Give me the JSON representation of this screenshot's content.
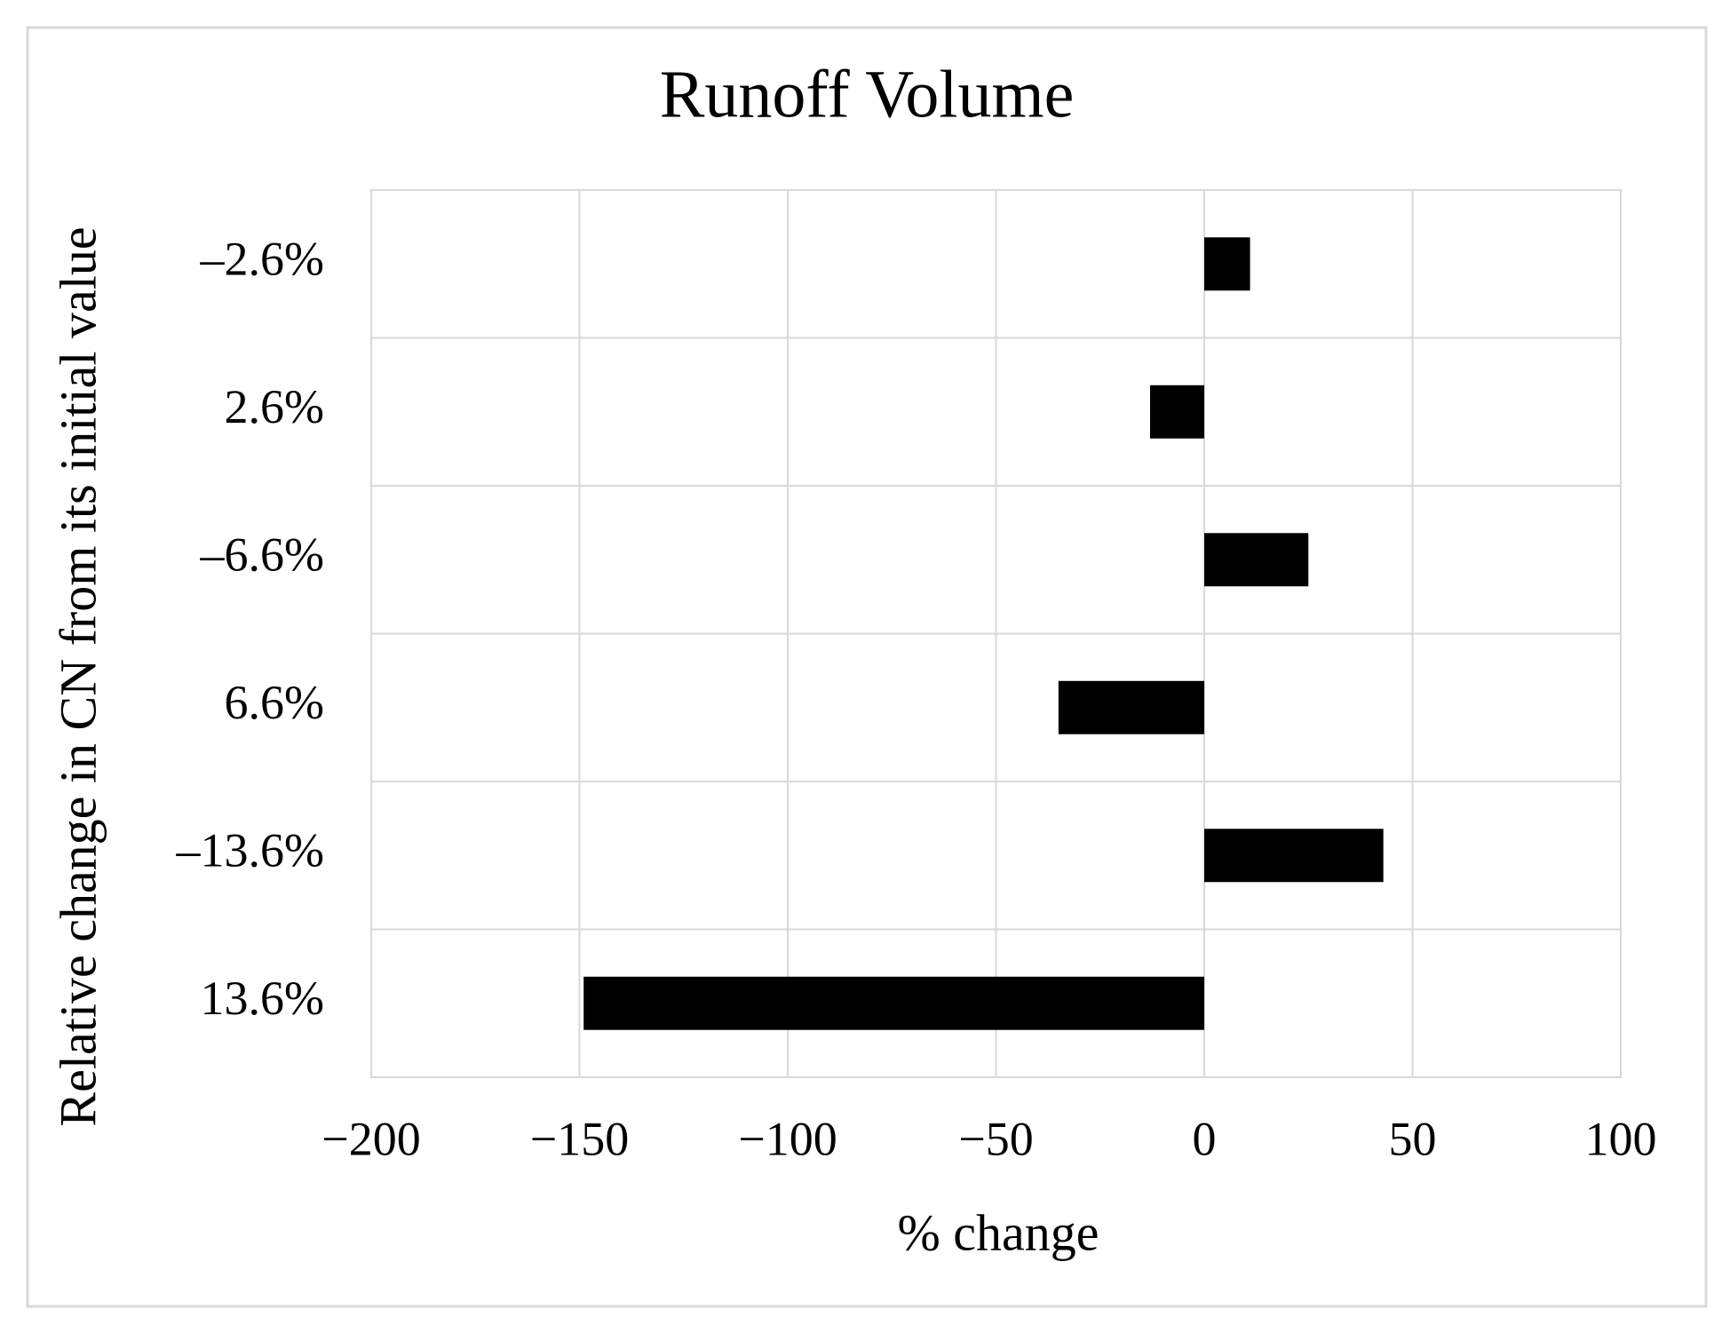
{
  "chart_data": {
    "type": "bar",
    "orientation": "horizontal",
    "title": "Runoff Volume",
    "x_label": "% change",
    "y_label": "Relative change in CN from its initial value",
    "categories": [
      "–2.6%",
      "2.6%",
      "–6.6%",
      "6.6%",
      "–13.6%",
      "13.6%"
    ],
    "values": [
      11,
      -13,
      25,
      -35,
      43,
      -149
    ],
    "color": "#000000",
    "xlim": [
      -200,
      100
    ],
    "xticks": [
      {
        "value": -200,
        "label": "−200"
      },
      {
        "value": -150,
        "label": "−150"
      },
      {
        "value": -100,
        "label": "−100"
      },
      {
        "value": -50,
        "label": "−50"
      },
      0,
      50,
      100
    ],
    "grid": true
  }
}
